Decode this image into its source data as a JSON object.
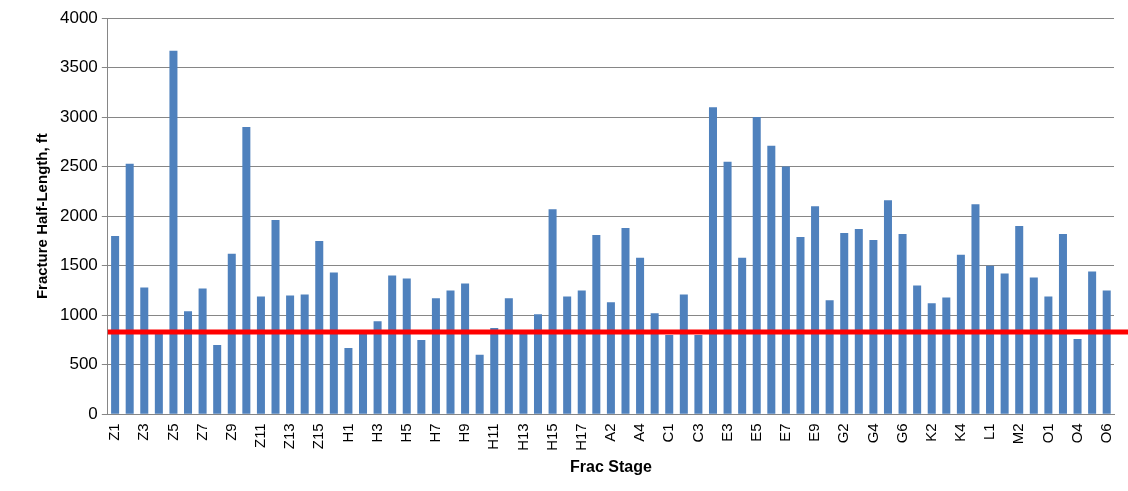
{
  "chart_data": {
    "type": "bar",
    "xlabel": "Frac Stage",
    "ylabel": "Fracture Half-Length, ft",
    "categories": [
      "Z1",
      null,
      "Z3",
      null,
      "Z5",
      null,
      "Z7",
      null,
      "Z9",
      null,
      "Z11",
      null,
      "Z13",
      null,
      "Z15",
      null,
      "H1",
      null,
      "H3",
      null,
      "H5",
      null,
      "H7",
      null,
      "H9",
      null,
      "H11",
      null,
      "H13",
      null,
      "H15",
      null,
      "H17",
      null,
      "A2",
      null,
      "A4",
      null,
      "C1",
      null,
      "C3",
      null,
      "E3",
      null,
      "E5",
      null,
      "E7",
      null,
      "E9",
      null,
      "G2",
      null,
      "G4",
      null,
      "G6",
      null,
      "K2",
      null,
      "K4",
      null,
      "L1",
      null,
      "M2",
      null,
      "O1",
      null,
      "O4",
      null,
      "O6"
    ],
    "values": [
      1800,
      2530,
      1280,
      820,
      3670,
      1040,
      1270,
      700,
      1620,
      2900,
      1190,
      1960,
      1200,
      1210,
      1750,
      1430,
      670,
      820,
      940,
      1400,
      1370,
      750,
      1170,
      1250,
      1320,
      600,
      870,
      1170,
      820,
      1010,
      2070,
      1190,
      1250,
      1810,
      1130,
      1880,
      1580,
      1020,
      800,
      1210,
      800,
      3100,
      2550,
      1580,
      3000,
      2710,
      2500,
      1790,
      2100,
      1150,
      1830,
      1870,
      1760,
      2160,
      1820,
      1300,
      1120,
      1180,
      1610,
      2120,
      1500,
      1420,
      1900,
      1380,
      1190,
      1820,
      760,
      1440,
      1250
    ],
    "color": "#4f81bd",
    "ylim": [
      0,
      4000
    ],
    "yticks": [
      0,
      500,
      1000,
      1500,
      2000,
      2500,
      3000,
      3500,
      4000
    ],
    "grid": "y",
    "legend": false,
    "ref_lines": [
      {
        "axis": "y",
        "value": 830,
        "color": "#ff0000",
        "line_style": "solid"
      }
    ]
  }
}
